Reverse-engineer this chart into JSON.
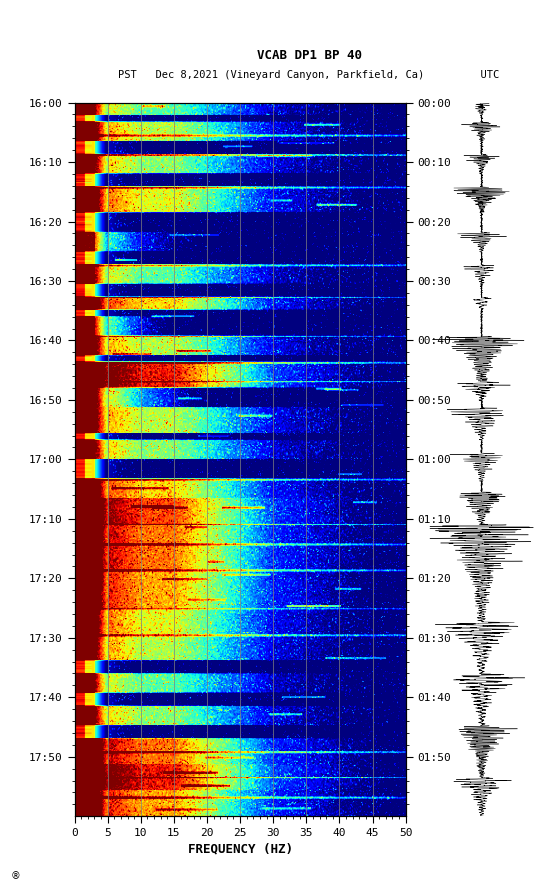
{
  "title_line1": "VCAB DP1 BP 40",
  "title_line2": "PST   Dec 8,2021 (Vineyard Canyon, Parkfield, Ca)         UTC",
  "xlabel": "FREQUENCY (HZ)",
  "freq_min": 0,
  "freq_max": 50,
  "ytick_pst": [
    "16:00",
    "16:10",
    "16:20",
    "16:30",
    "16:40",
    "16:50",
    "17:00",
    "17:10",
    "17:20",
    "17:30",
    "17:40",
    "17:50"
  ],
  "ytick_utc": [
    "00:00",
    "00:10",
    "00:20",
    "00:30",
    "00:40",
    "00:50",
    "01:00",
    "01:10",
    "01:20",
    "01:30",
    "01:40",
    "01:50"
  ],
  "freq_ticks_major": [
    0,
    5,
    10,
    15,
    20,
    25,
    30,
    35,
    40,
    45,
    50
  ],
  "freq_gridlines": [
    5,
    10,
    15,
    20,
    25,
    30,
    35,
    40,
    45
  ],
  "colormap": "jet",
  "fig_width": 5.52,
  "fig_height": 8.92,
  "dpi": 100,
  "n_time": 660,
  "n_freq": 400,
  "vmin": -1.0,
  "vmax": 8.0
}
